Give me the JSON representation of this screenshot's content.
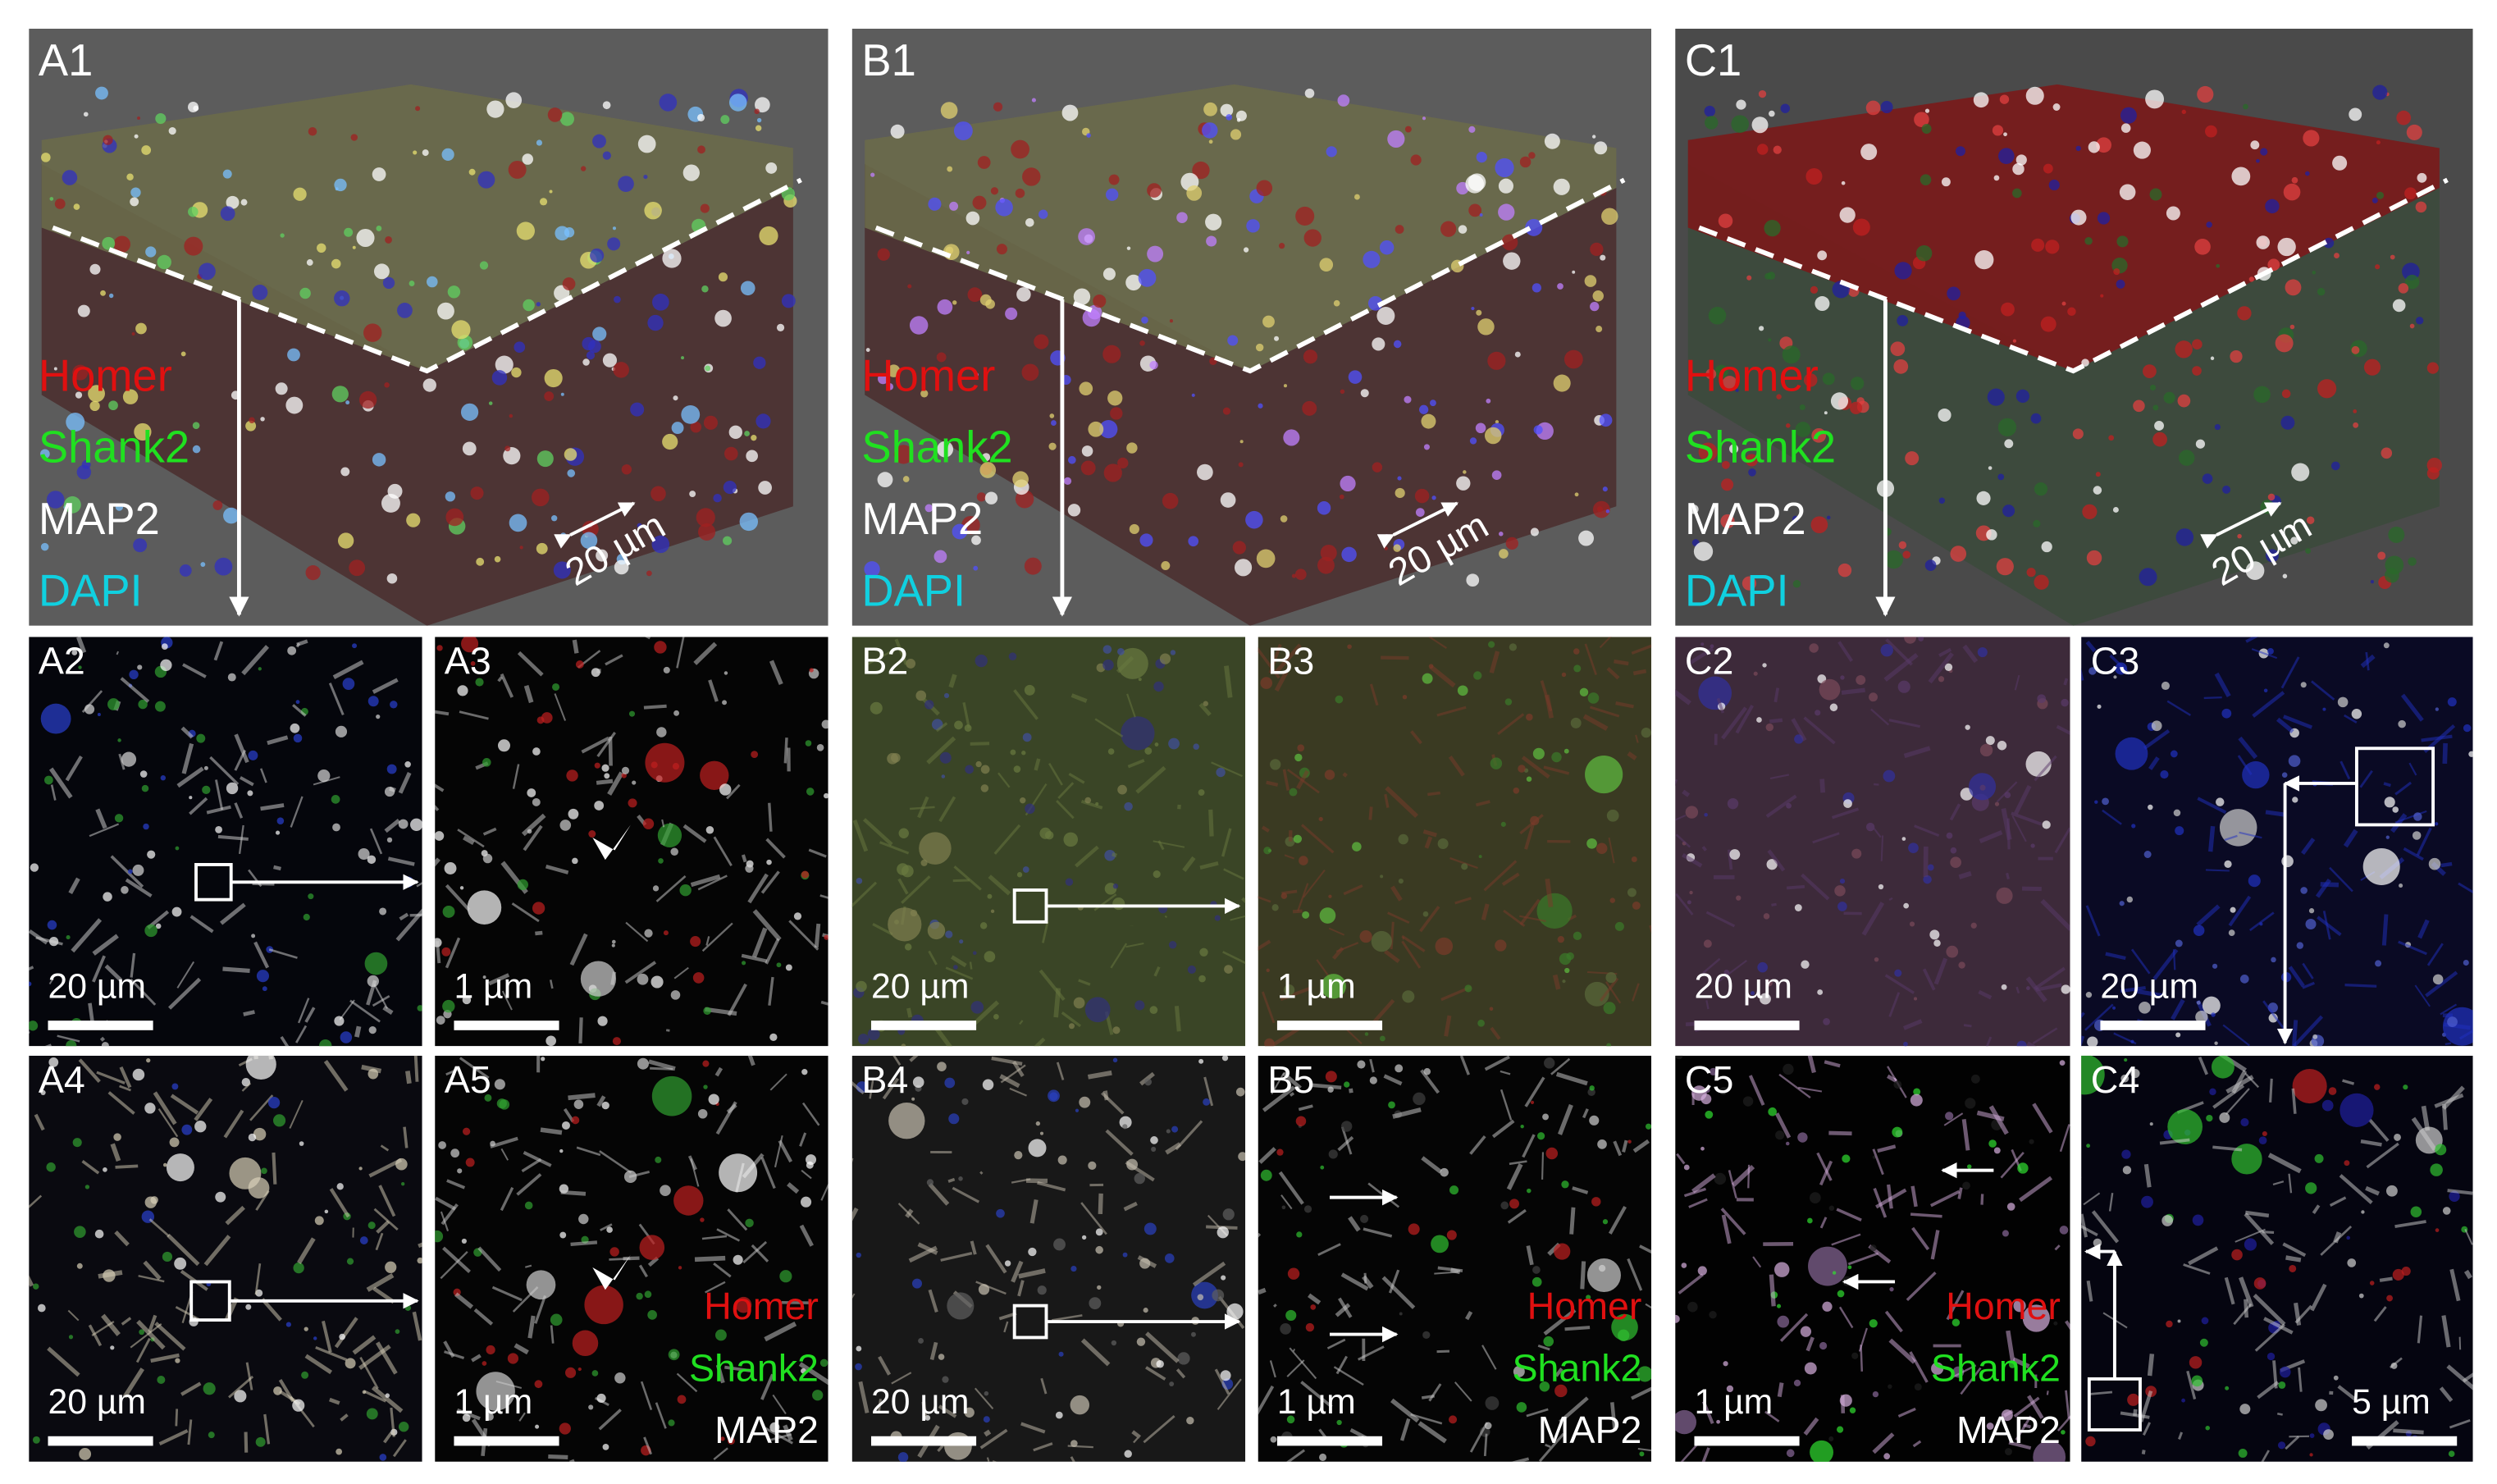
{
  "panels": [
    {
      "label": "A1",
      "legend": [
        "Homer",
        "Shank2",
        "MAP2",
        "DAPI"
      ],
      "scale_bar": "20 µm"
    },
    {
      "label": "B1",
      "legend": [
        "Homer",
        "Shank2",
        "MAP2",
        "DAPI"
      ],
      "scale_bar": "20 µm"
    },
    {
      "label": "C1",
      "legend": [
        "Homer",
        "Shank2",
        "MAP2",
        "DAPI"
      ],
      "scale_bar": "20 µm"
    },
    {
      "label": "A2",
      "scale_bar": "20 µm"
    },
    {
      "label": "A3",
      "scale_bar": "1 µm"
    },
    {
      "label": "B2",
      "scale_bar": "20 µm"
    },
    {
      "label": "B3",
      "scale_bar": "1 µm"
    },
    {
      "label": "C2",
      "scale_bar": "20 µm"
    },
    {
      "label": "C3",
      "scale_bar": "20 µm"
    },
    {
      "label": "A4",
      "scale_bar": "20 µm"
    },
    {
      "label": "A5",
      "legend": [
        "Homer",
        "Shank2",
        "MAP2"
      ],
      "scale_bar": "1 µm"
    },
    {
      "label": "B4",
      "scale_bar": "20 µm"
    },
    {
      "label": "B5",
      "legend": [
        "Homer",
        "Shank2",
        "MAP2"
      ],
      "scale_bar": "1 µm"
    },
    {
      "label": "C5",
      "legend": [
        "Homer",
        "Shank2",
        "MAP2"
      ],
      "scale_bar": "1 µm"
    },
    {
      "label": "C4",
      "scale_bar": "5 µm"
    }
  ]
}
